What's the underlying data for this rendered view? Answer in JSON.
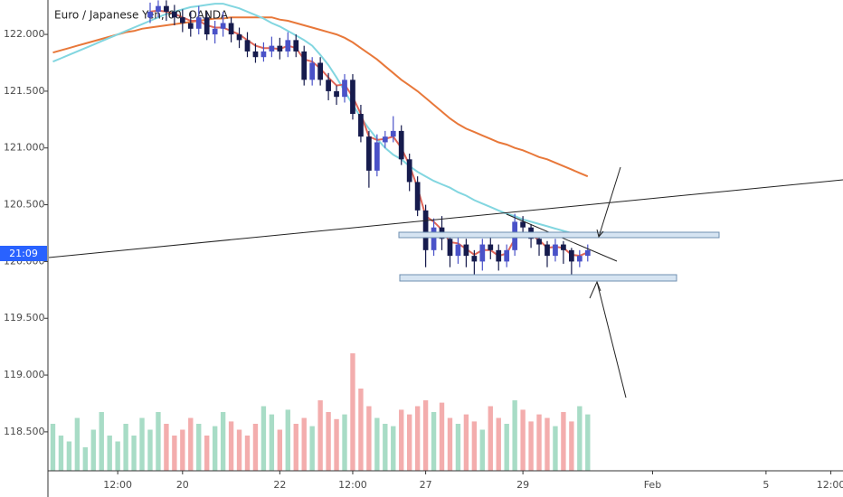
{
  "chart_data": {
    "type": "candlestick",
    "title": "Euro / Japanese Yen, 60, OANDA",
    "price_label": "21:09",
    "categories": [
      null,
      null,
      null,
      null,
      null,
      null,
      null,
      null,
      "12:00",
      null,
      null,
      null,
      null,
      null,
      null,
      null,
      "20",
      null,
      null,
      null,
      null,
      null,
      null,
      null,
      null,
      null,
      null,
      null,
      "22",
      null,
      null,
      null,
      null,
      null,
      null,
      null,
      null,
      "12:00",
      null,
      null,
      null,
      null,
      null,
      null,
      null,
      null,
      "27",
      null,
      null,
      null,
      null,
      null,
      null,
      null,
      null,
      null,
      null,
      null,
      "29",
      null,
      null,
      null,
      null,
      null,
      null,
      null,
      null,
      null,
      null,
      null,
      null,
      null,
      null,
      null,
      "Feb",
      null,
      null,
      null,
      null,
      null,
      null,
      null,
      null,
      null,
      null,
      null,
      null,
      null,
      "5",
      null,
      null,
      null,
      null,
      null,
      null,
      null,
      "12:00",
      null
    ],
    "open": [
      null,
      null,
      null,
      null,
      null,
      null,
      null,
      null,
      null,
      null,
      null,
      null,
      122.15,
      122.2,
      122.25,
      122.2,
      122.15,
      122.1,
      122.05,
      122.15,
      122.0,
      122.05,
      122.1,
      122.0,
      121.95,
      121.85,
      121.8,
      121.85,
      121.9,
      121.85,
      121.95,
      121.85,
      121.6,
      121.75,
      121.6,
      121.5,
      121.45,
      121.6,
      121.3,
      121.1,
      120.8,
      121.05,
      121.1,
      121.15,
      120.9,
      120.7,
      120.45,
      120.1,
      120.3,
      120.2,
      120.05,
      120.15,
      120.05,
      120.0,
      120.15,
      120.1,
      120.0,
      120.1,
      120.35,
      120.3,
      120.2,
      120.15,
      120.05,
      120.15,
      120.1,
      120.0,
      120.05,
      null,
      null,
      null,
      null,
      null,
      null,
      null,
      null,
      null,
      null,
      null,
      null,
      null,
      null,
      null,
      null,
      null,
      null,
      null,
      null,
      null,
      null,
      null,
      null,
      null,
      null,
      null,
      null,
      null,
      null,
      null
    ],
    "high": [
      null,
      null,
      null,
      null,
      null,
      null,
      null,
      null,
      null,
      null,
      null,
      null,
      122.28,
      122.3,
      122.3,
      122.26,
      122.22,
      122.2,
      122.25,
      122.2,
      122.12,
      122.2,
      122.15,
      122.06,
      122.02,
      121.92,
      121.93,
      121.98,
      121.97,
      122.02,
      122.0,
      121.9,
      121.8,
      121.8,
      121.66,
      121.55,
      121.65,
      121.65,
      121.38,
      121.15,
      121.12,
      121.15,
      121.28,
      121.2,
      120.95,
      120.75,
      120.5,
      120.38,
      120.4,
      120.25,
      120.22,
      120.2,
      120.1,
      120.2,
      120.22,
      120.15,
      120.15,
      120.42,
      120.4,
      120.33,
      120.25,
      120.18,
      120.2,
      120.18,
      120.12,
      120.1,
      120.15,
      null,
      null,
      null,
      null,
      null,
      null,
      null,
      null,
      null,
      null,
      null,
      null,
      null,
      null,
      null,
      null,
      null,
      null,
      null,
      null,
      null,
      null,
      null,
      null,
      null,
      null,
      null,
      null,
      null,
      null,
      null
    ],
    "low": [
      null,
      null,
      null,
      null,
      null,
      null,
      null,
      null,
      null,
      null,
      null,
      null,
      122.1,
      122.15,
      122.12,
      122.08,
      122.02,
      121.98,
      122.0,
      121.95,
      121.92,
      121.98,
      121.93,
      121.88,
      121.8,
      121.75,
      121.76,
      121.8,
      121.78,
      121.8,
      121.8,
      121.55,
      121.55,
      121.55,
      121.42,
      121.38,
      121.4,
      121.25,
      121.05,
      120.65,
      120.75,
      121.0,
      121.05,
      120.85,
      120.62,
      120.4,
      119.95,
      120.05,
      120.1,
      119.95,
      119.98,
      119.95,
      119.85,
      119.92,
      120.02,
      119.92,
      119.95,
      120.05,
      120.22,
      120.12,
      120.05,
      119.95,
      120.0,
      119.98,
      119.85,
      119.95,
      120.0,
      null,
      null,
      null,
      null,
      null,
      null,
      null,
      null,
      null,
      null,
      null,
      null,
      null,
      null,
      null,
      null,
      null,
      null,
      null,
      null,
      null,
      null,
      null,
      null,
      null,
      null,
      null,
      null,
      null,
      null,
      null
    ],
    "close": [
      null,
      null,
      null,
      null,
      null,
      null,
      null,
      null,
      null,
      null,
      null,
      null,
      122.2,
      122.25,
      122.2,
      122.15,
      122.1,
      122.05,
      122.15,
      122.0,
      122.05,
      122.1,
      122.0,
      121.95,
      121.85,
      121.8,
      121.85,
      121.9,
      121.85,
      121.95,
      121.85,
      121.6,
      121.75,
      121.6,
      121.5,
      121.45,
      121.6,
      121.3,
      121.1,
      120.8,
      121.05,
      121.1,
      121.15,
      120.9,
      120.7,
      120.45,
      120.1,
      120.3,
      120.2,
      120.05,
      120.15,
      120.05,
      120.0,
      120.15,
      120.1,
      120.0,
      120.1,
      120.35,
      120.3,
      120.2,
      120.15,
      120.05,
      120.15,
      120.1,
      120.0,
      120.05,
      120.1,
      null,
      null,
      null,
      null,
      null,
      null,
      null,
      null,
      null,
      null,
      null,
      null,
      null,
      null,
      null,
      null,
      null,
      null,
      null,
      null,
      null,
      null,
      null,
      null,
      null,
      null,
      null,
      null,
      null,
      null,
      null
    ],
    "up_color": "#4a52c8",
    "down_color": "#161b4d",
    "volume": {
      "values": [
        40,
        30,
        25,
        45,
        20,
        35,
        50,
        30,
        25,
        40,
        30,
        45,
        35,
        50,
        40,
        30,
        35,
        45,
        40,
        30,
        38,
        50,
        42,
        35,
        30,
        40,
        55,
        48,
        35,
        52,
        40,
        45,
        38,
        60,
        50,
        44,
        48,
        100,
        70,
        55,
        45,
        40,
        38,
        52,
        48,
        55,
        60,
        50,
        58,
        45,
        40,
        48,
        42,
        35,
        55,
        45,
        40,
        60,
        52,
        42,
        48,
        45,
        38,
        50,
        42,
        55,
        48,
        null,
        null,
        null,
        null,
        null,
        null,
        null,
        null,
        null,
        null,
        null,
        null,
        null,
        null,
        null,
        null,
        null,
        null,
        null,
        null,
        null,
        null,
        null,
        null,
        null,
        null,
        null,
        null,
        null,
        null,
        null
      ],
      "up_color": "#a8dcc6",
      "down_color": "#f3adad"
    },
    "series": [
      {
        "color": "#e8783a",
        "values": [
          121.84,
          121.86,
          121.88,
          121.9,
          121.92,
          121.94,
          121.96,
          121.98,
          122.0,
          122.02,
          122.03,
          122.05,
          122.06,
          122.07,
          122.08,
          122.09,
          122.1,
          122.11,
          122.12,
          122.13,
          122.14,
          122.14,
          122.15,
          122.15,
          122.15,
          122.15,
          122.15,
          122.15,
          122.13,
          122.12,
          122.1,
          122.08,
          122.06,
          122.04,
          122.02,
          122.0,
          121.97,
          121.93,
          121.88,
          121.83,
          121.78,
          121.72,
          121.66,
          121.6,
          121.55,
          121.5,
          121.44,
          121.38,
          121.32,
          121.26,
          121.21,
          121.17,
          121.14,
          121.11,
          121.08,
          121.05,
          121.03,
          121.0,
          120.98,
          120.95,
          120.92,
          120.9,
          120.87,
          120.84,
          120.81,
          120.78,
          120.75,
          null,
          null,
          null,
          null,
          null,
          null,
          null,
          null,
          null,
          null,
          null,
          null,
          null,
          null,
          null,
          null,
          null,
          null,
          null,
          null,
          null,
          null,
          null,
          null,
          null,
          null,
          null,
          null,
          null,
          null,
          null
        ]
      },
      {
        "color": "#82d6e0",
        "values": [
          121.76,
          121.79,
          121.82,
          121.85,
          121.88,
          121.91,
          121.94,
          121.97,
          122.0,
          122.03,
          122.06,
          122.09,
          122.12,
          122.15,
          122.18,
          122.2,
          122.22,
          122.24,
          122.25,
          122.26,
          122.27,
          122.27,
          122.25,
          122.23,
          122.2,
          122.17,
          122.14,
          122.1,
          122.07,
          122.03,
          121.99,
          121.95,
          121.9,
          121.82,
          121.73,
          121.62,
          121.5,
          121.38,
          121.27,
          121.17,
          121.08,
          121.0,
          120.94,
          120.9,
          120.84,
          120.79,
          120.75,
          120.71,
          120.68,
          120.65,
          120.61,
          120.58,
          120.54,
          120.51,
          120.48,
          120.45,
          120.42,
          120.4,
          120.37,
          120.35,
          120.33,
          120.31,
          120.29,
          120.27,
          120.25,
          120.23,
          120.22,
          null,
          null,
          null,
          null,
          null,
          null,
          null,
          null,
          null,
          null,
          null,
          null,
          null,
          null,
          null,
          null,
          null,
          null,
          null,
          null,
          null,
          null,
          null,
          null,
          null,
          null,
          null,
          null,
          null,
          null,
          null
        ]
      },
      {
        "color": "#e0675a",
        "values": [
          null,
          null,
          null,
          null,
          null,
          null,
          null,
          null,
          null,
          null,
          null,
          null,
          122.2,
          122.21,
          122.2,
          122.18,
          122.15,
          122.12,
          122.12,
          122.08,
          122.06,
          122.06,
          122.03,
          122.0,
          121.95,
          121.9,
          121.88,
          121.88,
          121.87,
          121.9,
          121.88,
          121.78,
          121.76,
          121.7,
          121.62,
          121.55,
          121.56,
          121.45,
          121.3,
          121.1,
          121.07,
          121.08,
          121.1,
          121.0,
          120.85,
          120.65,
          120.4,
          120.35,
          120.28,
          120.17,
          120.16,
          120.11,
          120.06,
          120.1,
          120.1,
          120.05,
          120.07,
          120.2,
          120.25,
          120.23,
          120.19,
          120.12,
          120.13,
          120.12,
          120.06,
          120.05,
          120.08,
          null,
          null,
          null,
          null,
          null,
          null,
          null,
          null,
          null,
          null,
          null,
          null,
          null,
          null,
          null,
          null,
          null,
          null,
          null,
          null,
          null,
          null,
          null,
          null,
          null,
          null,
          null,
          null,
          null,
          null,
          null
        ]
      }
    ],
    "ylim": [
      118.157,
      122.303
    ],
    "yticks": [
      {
        "value": 118.5,
        "label": "118.500"
      },
      {
        "value": 119,
        "label": "119.000"
      },
      {
        "value": 119.5,
        "label": "119.500"
      },
      {
        "value": 120,
        "label": "120.000"
      },
      {
        "value": 120.5,
        "label": "120.500"
      },
      {
        "value": 121,
        "label": "121.000"
      },
      {
        "value": 121.5,
        "label": "121.500"
      },
      {
        "value": 122,
        "label": "122.000"
      }
    ]
  }
}
